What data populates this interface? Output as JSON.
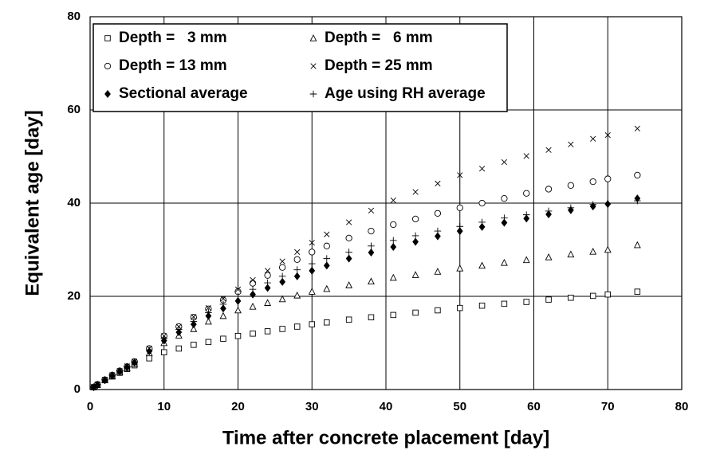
{
  "chart_data": {
    "type": "scatter",
    "xlabel": "Time after concrete placement [day]",
    "ylabel": "Equivalent age [day]",
    "xlim": [
      0,
      80
    ],
    "xticks": [
      0,
      10,
      20,
      30,
      40,
      50,
      60,
      70,
      80
    ],
    "ylim": [
      0,
      80
    ],
    "yticks": [
      0,
      20,
      40,
      60,
      80
    ],
    "grid": true,
    "legend": "upper left",
    "x": [
      0.5,
      1,
      2,
      3,
      4,
      5,
      6,
      8,
      10,
      12,
      14,
      16,
      18,
      20,
      22,
      24,
      26,
      28,
      30,
      32,
      35,
      38,
      41,
      44,
      47,
      50,
      53,
      56,
      59,
      62,
      65,
      68,
      70,
      74
    ],
    "series": [
      {
        "name": "Depth =   3 mm",
        "marker": "square",
        "color": "#000000",
        "values": [
          0.5,
          1,
          2,
          2.8,
          3.6,
          4.4,
          5.2,
          6.7,
          8,
          8.8,
          9.6,
          10.2,
          10.9,
          11.5,
          12,
          12.5,
          13,
          13.5,
          14,
          14.4,
          15,
          15.5,
          16,
          16.5,
          17,
          17.5,
          18,
          18.4,
          18.8,
          19.3,
          19.7,
          20.1,
          20.4,
          21
        ]
      },
      {
        "name": "Depth =   6 mm",
        "marker": "triangle",
        "color": "#000000",
        "values": [
          0.5,
          1,
          2,
          2.9,
          3.8,
          4.6,
          5.5,
          7.8,
          10,
          11.6,
          13,
          14.6,
          15.8,
          17,
          17.8,
          18.6,
          19.4,
          20.2,
          21,
          21.6,
          22.4,
          23.2,
          24,
          24.6,
          25.3,
          26,
          26.6,
          27.2,
          27.8,
          28.4,
          29,
          29.6,
          30,
          31
        ]
      },
      {
        "name": "Depth = 13 mm",
        "marker": "circle",
        "color": "#000000",
        "values": [
          0.5,
          1.1,
          2.1,
          3.1,
          4,
          4.9,
          6,
          8.8,
          11.5,
          13.5,
          15.5,
          17.3,
          19.2,
          21,
          22.8,
          24.5,
          26.2,
          27.9,
          29.5,
          30.8,
          32.5,
          34,
          35.4,
          36.6,
          37.8,
          39,
          40,
          41,
          42.1,
          43,
          43.8,
          44.6,
          45.2,
          46
        ]
      },
      {
        "name": "Depth = 25 mm",
        "marker": "x",
        "color": "#000000",
        "values": [
          0.5,
          1.1,
          2.1,
          3.1,
          4,
          5,
          6,
          8.8,
          11.5,
          13.5,
          15.6,
          17.5,
          19.5,
          21.5,
          23.5,
          25.5,
          27.5,
          29.5,
          31.5,
          33.3,
          35.9,
          38.4,
          40.6,
          42.4,
          44.2,
          46,
          47.4,
          48.8,
          50.1,
          51.4,
          52.6,
          53.8,
          54.6,
          56
        ]
      },
      {
        "name": "Sectional average",
        "marker": "diamond",
        "color": "#000000",
        "values": [
          0.5,
          1,
          2,
          3,
          3.9,
          4.8,
          5.8,
          8.2,
          10.5,
          12.3,
          14,
          15.8,
          17.4,
          19,
          20.4,
          21.8,
          23.1,
          24.3,
          25.5,
          26.6,
          28.1,
          29.4,
          30.6,
          31.7,
          32.9,
          34,
          34.9,
          35.8,
          36.7,
          37.6,
          38.5,
          39.3,
          39.8,
          41
        ]
      },
      {
        "name": "Age using RH average",
        "marker": "plus",
        "color": "#000000",
        "values": [
          0.5,
          1,
          2.1,
          3.1,
          4,
          4.9,
          5.9,
          8.5,
          11,
          12.9,
          14.6,
          16.5,
          18.3,
          20,
          21.5,
          22.9,
          24.3,
          25.7,
          27,
          28.1,
          29.5,
          30.8,
          32,
          33,
          34,
          35,
          35.9,
          36.8,
          37.5,
          38.3,
          39,
          39.7,
          40,
          40.5
        ]
      }
    ]
  }
}
